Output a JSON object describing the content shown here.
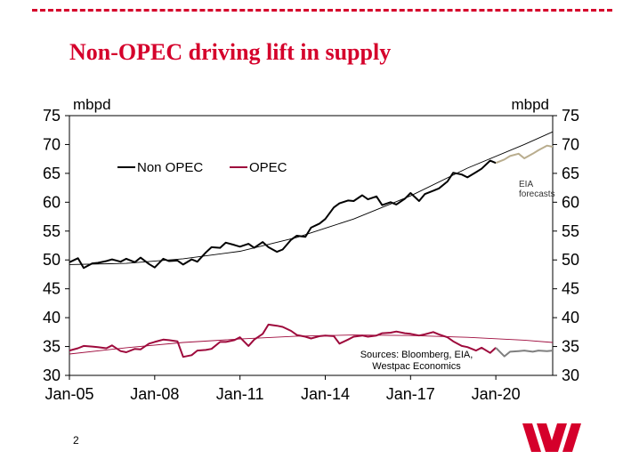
{
  "slide": {
    "title": "Non-OPEC driving lift in supply",
    "page_number": "2",
    "brand_color": "#d5002b"
  },
  "chart_data": {
    "type": "line",
    "title": "",
    "ylabel_left": "mbpd",
    "ylabel_right": "mbpd",
    "ylim": [
      30,
      75
    ],
    "yticks": [
      30,
      35,
      40,
      45,
      50,
      55,
      60,
      65,
      70,
      75
    ],
    "xlim": [
      2005.0,
      2022.0
    ],
    "xticks": [
      {
        "label": "Jan-05",
        "x": 2005
      },
      {
        "label": "Jan-08",
        "x": 2008
      },
      {
        "label": "Jan-11",
        "x": 2011
      },
      {
        "label": "Jan-14",
        "x": 2014
      },
      {
        "label": "Jan-17",
        "x": 2017
      },
      {
        "label": "Jan-20",
        "x": 2020
      }
    ],
    "legend": {
      "placement": "top-left",
      "entries": [
        {
          "name": "Non OPEC",
          "color": "#000000"
        },
        {
          "name": "OPEC",
          "color": "#9e0a3c"
        }
      ]
    },
    "series": [
      {
        "name": "Non OPEC",
        "color": "#000000",
        "x": [
          2005.0,
          2005.3,
          2005.5,
          2005.8,
          2006.0,
          2006.3,
          2006.5,
          2006.8,
          2007.0,
          2007.3,
          2007.5,
          2007.8,
          2008.0,
          2008.3,
          2008.5,
          2008.8,
          2009.0,
          2009.3,
          2009.5,
          2009.8,
          2010.0,
          2010.3,
          2010.5,
          2010.8,
          2011.0,
          2011.3,
          2011.5,
          2011.8,
          2012.0,
          2012.3,
          2012.5,
          2012.8,
          2013.0,
          2013.3,
          2013.5,
          2013.8,
          2014.0,
          2014.3,
          2014.5,
          2014.8,
          2015.0,
          2015.3,
          2015.5,
          2015.8,
          2016.0,
          2016.3,
          2016.5,
          2016.8,
          2017.0,
          2017.3,
          2017.5,
          2017.8,
          2018.0,
          2018.3,
          2018.5,
          2018.8,
          2019.0,
          2019.3,
          2019.5,
          2019.8,
          2020.0
        ],
        "values": [
          49.6,
          50.3,
          48.6,
          49.4,
          49.5,
          49.8,
          50.1,
          49.7,
          50.2,
          49.6,
          50.4,
          49.3,
          48.7,
          50.2,
          49.8,
          49.9,
          49.2,
          50.1,
          49.7,
          51.3,
          52.2,
          52.1,
          53.0,
          52.6,
          52.3,
          52.8,
          52.1,
          53.1,
          52.2,
          51.4,
          51.8,
          53.5,
          54.2,
          54.0,
          55.6,
          56.3,
          57.1,
          59.1,
          59.8,
          60.3,
          60.2,
          61.2,
          60.5,
          61.0,
          59.5,
          60.0,
          59.6,
          60.6,
          61.6,
          60.2,
          61.4,
          62.0,
          62.4,
          63.6,
          65.1,
          64.8,
          64.3,
          65.2,
          65.8,
          67.2,
          66.8
        ]
      },
      {
        "name": "Non OPEC (EIA forecasts)",
        "color": "#b9ad8e",
        "x": [
          2020.0,
          2020.3,
          2020.5,
          2020.8,
          2021.0,
          2021.3,
          2021.5,
          2021.8,
          2022.0
        ],
        "values": [
          66.8,
          67.4,
          68.0,
          68.4,
          67.6,
          68.4,
          69.0,
          69.8,
          69.6
        ]
      },
      {
        "name": "OPEC",
        "color": "#9e0a3c",
        "x": [
          2005.0,
          2005.3,
          2005.5,
          2005.8,
          2006.0,
          2006.3,
          2006.5,
          2006.8,
          2007.0,
          2007.3,
          2007.5,
          2007.8,
          2008.0,
          2008.3,
          2008.5,
          2008.8,
          2009.0,
          2009.3,
          2009.5,
          2009.8,
          2010.0,
          2010.3,
          2010.5,
          2010.8,
          2011.0,
          2011.3,
          2011.5,
          2011.8,
          2012.0,
          2012.3,
          2012.5,
          2012.8,
          2013.0,
          2013.3,
          2013.5,
          2013.8,
          2014.0,
          2014.3,
          2014.5,
          2014.8,
          2015.0,
          2015.3,
          2015.5,
          2015.8,
          2016.0,
          2016.3,
          2016.5,
          2016.8,
          2017.0,
          2017.3,
          2017.5,
          2017.8,
          2018.0,
          2018.3,
          2018.5,
          2018.8,
          2019.0,
          2019.3,
          2019.5,
          2019.8,
          2020.0
        ],
        "values": [
          34.3,
          34.7,
          35.1,
          35.0,
          34.9,
          34.7,
          35.2,
          34.2,
          34.0,
          34.6,
          34.5,
          35.5,
          35.8,
          36.2,
          36.1,
          35.9,
          33.2,
          33.5,
          34.3,
          34.4,
          34.6,
          35.8,
          35.8,
          36.1,
          36.6,
          35.1,
          36.2,
          37.2,
          38.8,
          38.6,
          38.4,
          37.7,
          37.0,
          36.7,
          36.4,
          36.8,
          36.9,
          36.8,
          35.5,
          36.2,
          36.7,
          36.9,
          36.7,
          36.9,
          37.3,
          37.4,
          37.6,
          37.3,
          37.2,
          36.9,
          37.1,
          37.5,
          37.1,
          36.6,
          35.9,
          35.1,
          34.9,
          34.3,
          34.8,
          33.9,
          34.8
        ]
      },
      {
        "name": "OPEC (EIA forecasts)",
        "color": "#7f7f7f",
        "x": [
          2020.0,
          2020.3,
          2020.5,
          2020.8,
          2021.0,
          2021.3,
          2021.5,
          2021.8,
          2022.0
        ],
        "values": [
          34.8,
          33.3,
          34.1,
          34.2,
          34.3,
          34.1,
          34.3,
          34.2,
          34.3
        ]
      }
    ],
    "trend_lines": [
      {
        "name": "Non OPEC trend",
        "color": "#000000",
        "x": [
          2005.0,
          2007.0,
          2009.0,
          2011.0,
          2013.0,
          2015.0,
          2017.0,
          2019.0,
          2021.0,
          2022.0
        ],
        "values": [
          49.2,
          49.4,
          50.2,
          51.5,
          53.9,
          57.1,
          61.1,
          65.9,
          70.0,
          72.2
        ]
      },
      {
        "name": "OPEC trend",
        "color": "#9e0a3c",
        "x": [
          2005.0,
          2007.0,
          2009.0,
          2011.0,
          2013.0,
          2015.0,
          2017.0,
          2019.0,
          2021.0,
          2022.0
        ],
        "values": [
          33.7,
          34.8,
          35.7,
          36.3,
          36.8,
          37.0,
          36.9,
          36.6,
          36.1,
          35.7
        ]
      }
    ],
    "annotations": [
      {
        "text_lines": [
          "EIA",
          "forecasts"
        ]
      },
      {
        "text_lines": [
          "Sources: Bloomberg, EIA,",
          "Westpac Economics"
        ]
      }
    ]
  }
}
